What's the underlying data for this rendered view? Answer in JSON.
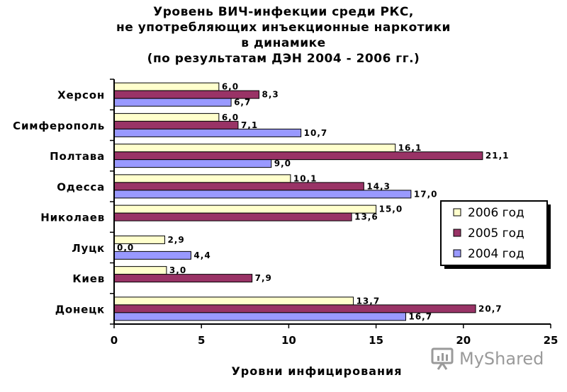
{
  "chart_data": {
    "type": "bar",
    "orientation": "horizontal",
    "title_lines": [
      "Уровень ВИЧ-инфекции среди РКС,",
      "не употребляющих инъекционные наркотики",
      "в динамике",
      "(по результатам ДЭН 2004 - 2006 гг.)"
    ],
    "categories": [
      "Херсон",
      "Симферополь",
      "Полтава",
      "Одесса",
      "Николаев",
      "Луцк",
      "Киев",
      "Донецк"
    ],
    "series": [
      {
        "name": "2006 год",
        "color": "#ffffcc",
        "values": [
          6.0,
          6.0,
          16.1,
          10.1,
          15.0,
          2.9,
          3.0,
          13.7
        ],
        "labels": [
          "6,0",
          "6,0",
          "16,1",
          "10,1",
          "15,0",
          "2,9",
          "3,0",
          "13,7"
        ]
      },
      {
        "name": "2005 год",
        "color": "#993366",
        "values": [
          8.3,
          7.1,
          21.1,
          14.3,
          13.6,
          0.0,
          7.9,
          20.7
        ],
        "labels": [
          "8,3",
          "7,1",
          "21,1",
          "14,3",
          "13,6",
          "0,0",
          "7,9",
          "20,7"
        ]
      },
      {
        "name": "2004 год",
        "color": "#9999ff",
        "values": [
          6.7,
          10.7,
          9.0,
          17.0,
          null,
          4.4,
          null,
          16.7
        ],
        "labels": [
          "6,7",
          "10,7",
          "9,0",
          "17,0",
          "",
          "4,4",
          "",
          "16,7"
        ]
      }
    ],
    "xlabel": "Уровни инфицирования",
    "xlim": [
      0,
      25
    ],
    "xticks": [
      0,
      5,
      10,
      15,
      20,
      25
    ],
    "legend_position": "right",
    "grid": false
  },
  "watermark": "MyShared"
}
